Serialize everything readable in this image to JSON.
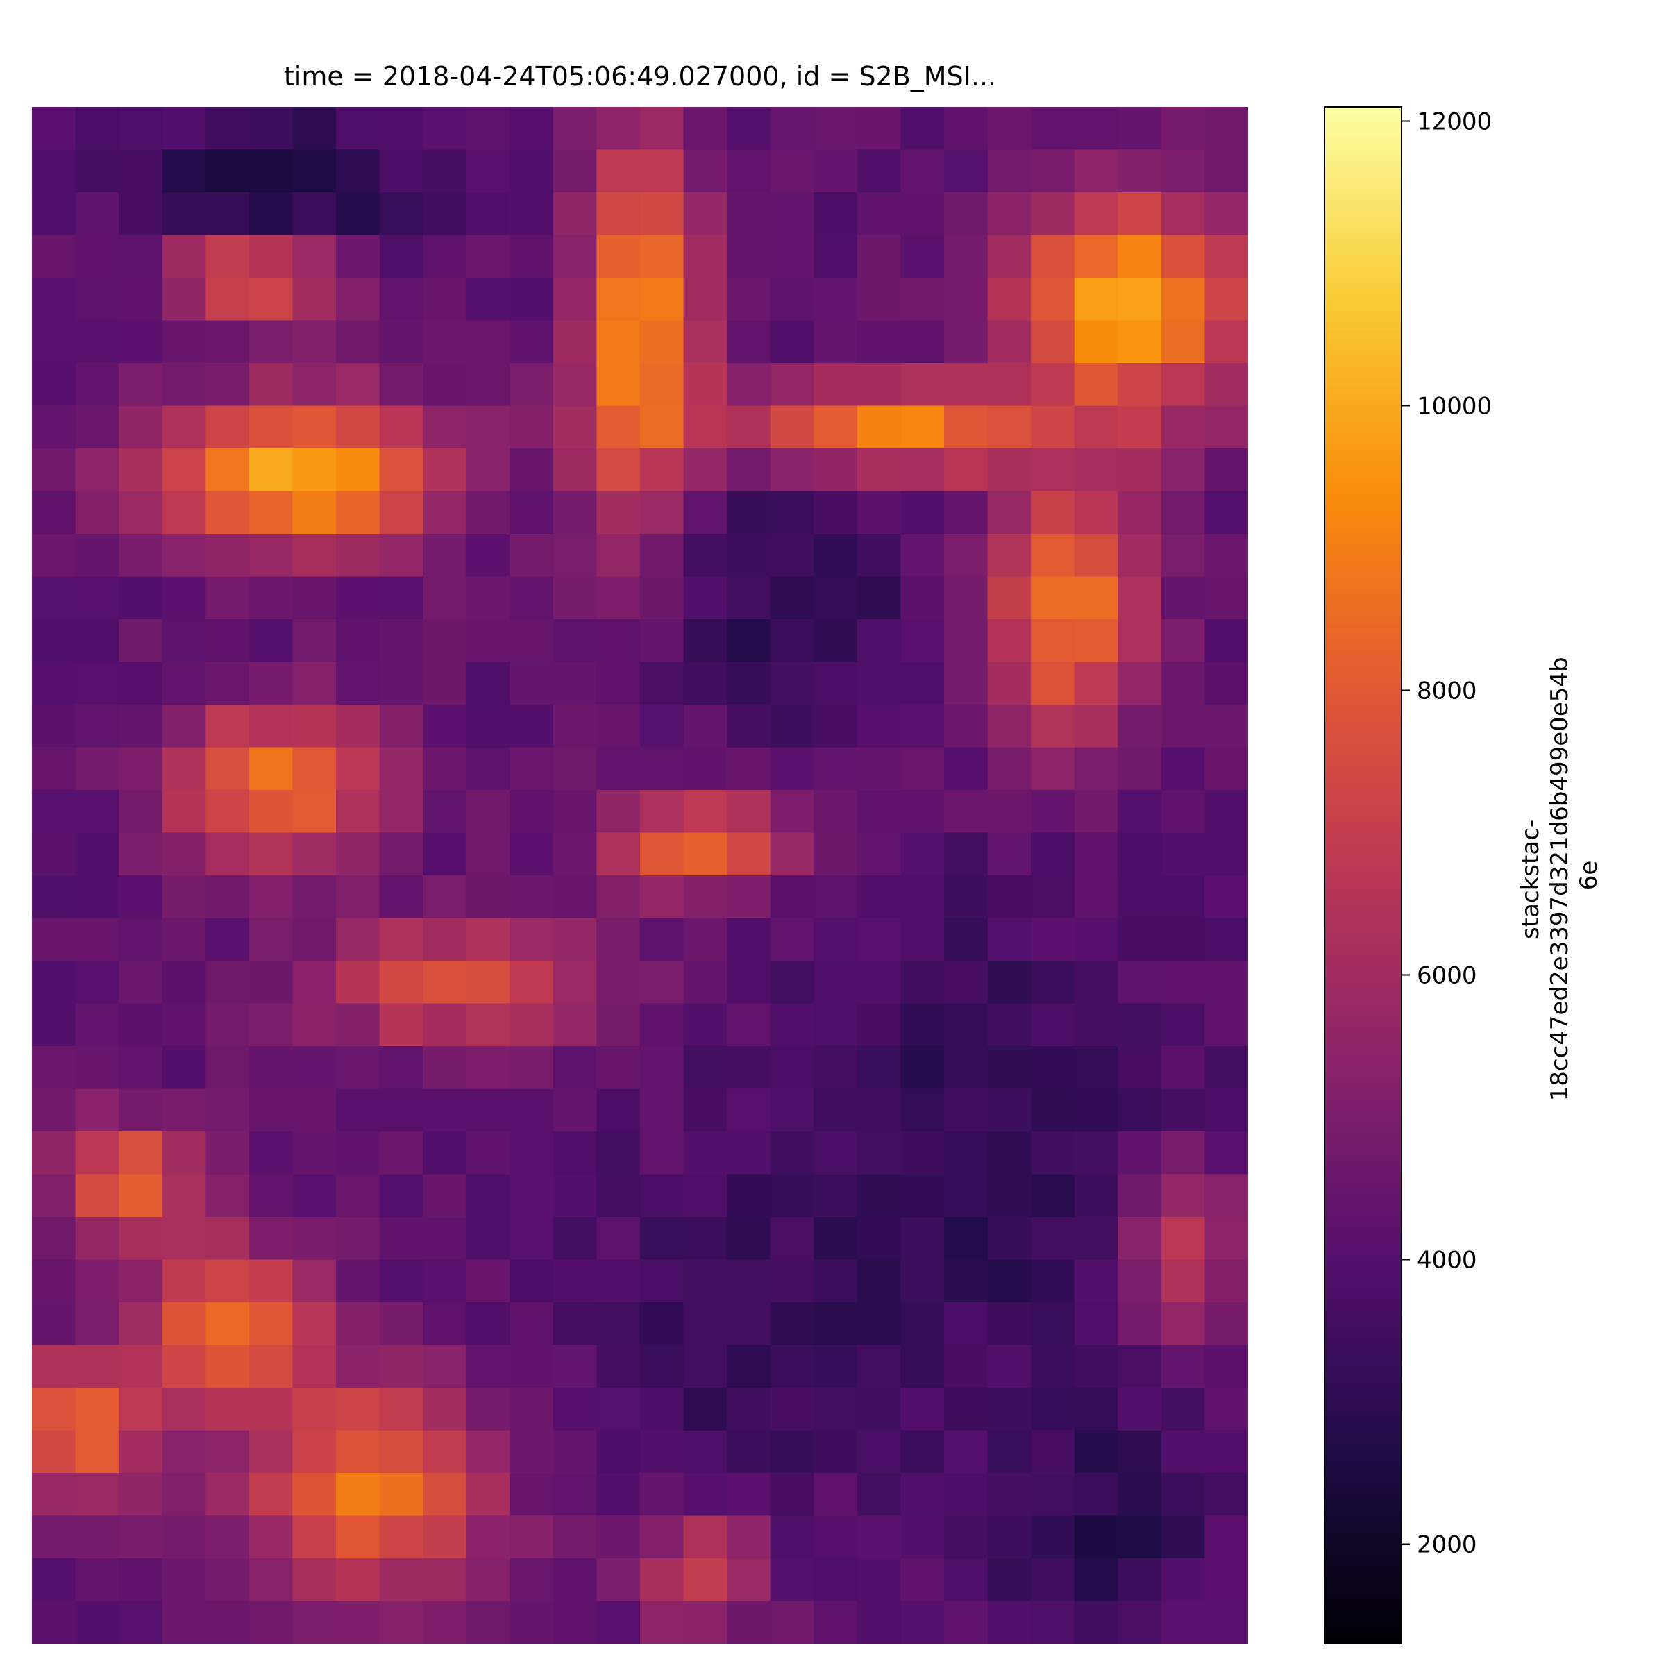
{
  "chart_data": {
    "type": "heatmap",
    "title": "time = 2018-04-24T05:06:49.027000, id = S2B_MSI...",
    "xlabel": "",
    "ylabel": "",
    "axes_visible": false,
    "grid": false,
    "colormap": "inferno",
    "colorbar": {
      "label_lines": [
        "stackstac-",
        "18cc47ed2e3397d321d6b499e0e54b",
        "6e"
      ],
      "range": [
        1300,
        12100
      ],
      "ticks": [
        2000,
        4000,
        6000,
        8000,
        10000,
        12000
      ],
      "tick_labels": [
        "2000",
        "4000",
        "6000",
        "8000",
        "10000",
        "12000"
      ],
      "stops": [
        "#000004",
        "#1f0c48",
        "#550f6d",
        "#88226a",
        "#ba3655",
        "#e35933",
        "#f98e09",
        "#f9cb35",
        "#fcffa4"
      ]
    },
    "raster": {
      "rows": 36,
      "cols": 28,
      "approx_values_description_free": true,
      "base_value": 4200,
      "bright_regions": [
        {
          "cx": 0.18,
          "cy": 0.1,
          "rx": 0.07,
          "ry": 0.035,
          "v": 9800
        },
        {
          "cx": 0.22,
          "cy": 0.24,
          "rx": 0.12,
          "ry": 0.05,
          "v": 9900
        },
        {
          "cx": 0.5,
          "cy": 0.15,
          "rx": 0.05,
          "ry": 0.13,
          "v": 9600
        },
        {
          "cx": 0.9,
          "cy": 0.13,
          "rx": 0.1,
          "ry": 0.07,
          "v": 10000
        },
        {
          "cx": 0.7,
          "cy": 0.21,
          "rx": 0.16,
          "ry": 0.03,
          "v": 9300
        },
        {
          "cx": 0.85,
          "cy": 0.33,
          "rx": 0.07,
          "ry": 0.09,
          "v": 8800
        },
        {
          "cx": 0.2,
          "cy": 0.44,
          "rx": 0.09,
          "ry": 0.05,
          "v": 8900
        },
        {
          "cx": 0.55,
          "cy": 0.48,
          "rx": 0.08,
          "ry": 0.03,
          "v": 9100
        },
        {
          "cx": 0.35,
          "cy": 0.57,
          "rx": 0.12,
          "ry": 0.04,
          "v": 7800
        },
        {
          "cx": 0.08,
          "cy": 0.7,
          "rx": 0.06,
          "ry": 0.04,
          "v": 8400
        },
        {
          "cx": 0.16,
          "cy": 0.8,
          "rx": 0.08,
          "ry": 0.06,
          "v": 8600
        },
        {
          "cx": 0.28,
          "cy": 0.9,
          "rx": 0.1,
          "ry": 0.07,
          "v": 8700
        },
        {
          "cx": 0.04,
          "cy": 0.86,
          "rx": 0.05,
          "ry": 0.05,
          "v": 8300
        },
        {
          "cx": 0.94,
          "cy": 0.74,
          "rx": 0.06,
          "ry": 0.06,
          "v": 8500
        },
        {
          "cx": 0.55,
          "cy": 0.95,
          "rx": 0.05,
          "ry": 0.04,
          "v": 7500
        }
      ],
      "dark_regions": [
        {
          "cx": 0.2,
          "cy": 0.05,
          "rx": 0.14,
          "ry": 0.05,
          "v": 2600
        },
        {
          "cx": 0.63,
          "cy": 0.32,
          "rx": 0.1,
          "ry": 0.08,
          "v": 2900
        },
        {
          "cx": 0.78,
          "cy": 0.68,
          "rx": 0.18,
          "ry": 0.16,
          "v": 3000
        },
        {
          "cx": 0.6,
          "cy": 0.8,
          "rx": 0.14,
          "ry": 0.1,
          "v": 3200
        },
        {
          "cx": 0.88,
          "cy": 0.92,
          "rx": 0.1,
          "ry": 0.07,
          "v": 2900
        }
      ]
    }
  }
}
